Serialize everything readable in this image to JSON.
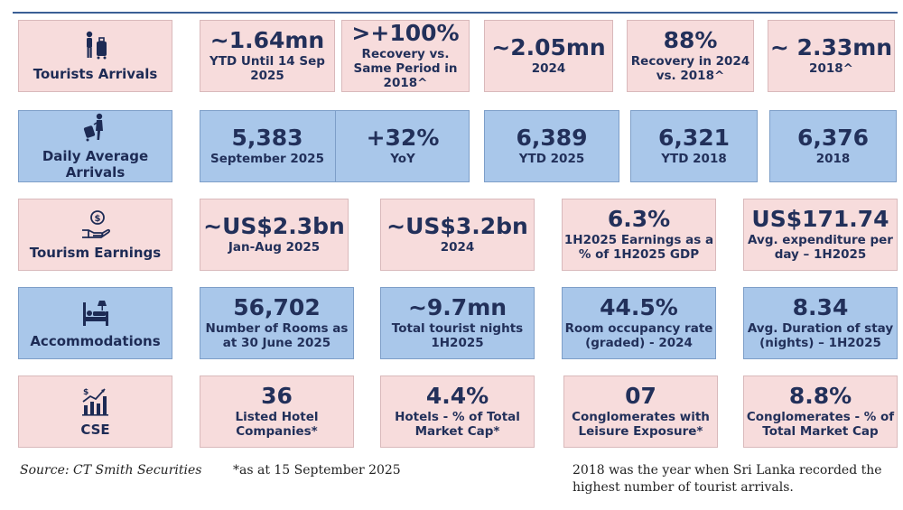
{
  "rows": [
    {
      "label": "Tourists Arrivals",
      "icon": "traveler-luggage-icon",
      "cells": [
        {
          "value": "~1.64mn",
          "sub": "YTD Until 14 Sep 2025"
        },
        {
          "value": ">+100%",
          "sub": "Recovery vs. Same Period in 2018^"
        },
        {
          "value": "~2.05mn",
          "sub": "2024"
        },
        {
          "value": "88%",
          "sub": "Recovery in 2024 vs. 2018^"
        },
        {
          "value": "~ 2.33mn",
          "sub": "2018^"
        }
      ]
    },
    {
      "label": "Daily Average Arrivals",
      "icon": "traveler-walking-icon",
      "cells": [
        {
          "value": "5,383",
          "sub": "September 2025"
        },
        {
          "value": "+32%",
          "sub": "YoY"
        },
        {
          "value": "6,389",
          "sub": "YTD 2025"
        },
        {
          "value": "6,321",
          "sub": "YTD 2018"
        },
        {
          "value": "6,376",
          "sub": "2018"
        }
      ]
    },
    {
      "label": "Tourism Earnings",
      "icon": "money-hand-icon",
      "cells": [
        {
          "value": "~US$2.3bn",
          "sub": "Jan-Aug 2025"
        },
        {
          "value": "~US$3.2bn",
          "sub": "2024"
        },
        {
          "value": "6.3%",
          "sub": "1H2025 Earnings as a % of 1H2025 GDP"
        },
        {
          "value": "US$171.74",
          "sub": "Avg. expenditure per day – 1H2025"
        }
      ]
    },
    {
      "label": "Accommodations",
      "icon": "bed-icon",
      "cells": [
        {
          "value": "56,702",
          "sub": "Number of Rooms as at 30 June 2025"
        },
        {
          "value": "~9.7mn",
          "sub": "Total tourist nights 1H2025"
        },
        {
          "value": "44.5%",
          "sub": "Room occupancy rate (graded) - 2024"
        },
        {
          "value": "8.34",
          "sub": "Avg. Duration of stay (nights) – 1H2025"
        }
      ]
    },
    {
      "label": "CSE",
      "icon": "stock-chart-icon",
      "cells": [
        {
          "value": "36",
          "sub": "Listed Hotel Companies*"
        },
        {
          "value": "4.4%",
          "sub": "Hotels - % of Total Market Cap*"
        },
        {
          "value": "07",
          "sub": "Conglomerates with Leisure Exposure*"
        },
        {
          "value": "8.8%",
          "sub": "Conglomerates  - % of Total Market Cap"
        }
      ]
    }
  ],
  "footer": {
    "source": "Source: CT Smith Securities",
    "note": "*as at 15 September 2025",
    "remark": "2018 was the year when Sri Lanka recorded the highest number of tourist arrivals."
  },
  "colors": {
    "pink": "#f7dcdc",
    "blue": "#a9c7ea",
    "text": "#22305a"
  }
}
